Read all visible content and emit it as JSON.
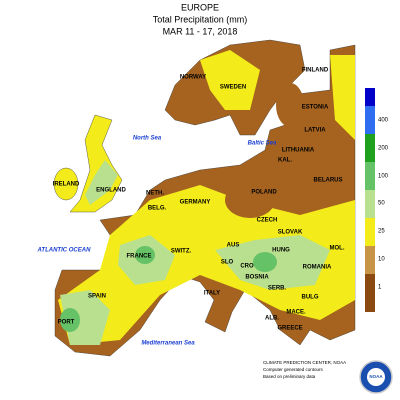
{
  "header": {
    "region": "EUROPE",
    "variable": "Total Precipitation (mm)",
    "period": "MAR 11 - 17, 2018"
  },
  "labels": [
    "NORWAY",
    "SWEDEN",
    "FINLAND",
    "ESTONIA",
    "LATVIA",
    "LITHUANIA",
    "KAL.",
    "BELARUS",
    "IRELAND",
    "ENGLAND",
    "NETH.",
    "BELG.",
    "GERMANY",
    "POLAND",
    "CZECH",
    "SLOVAK",
    "HUNG",
    "AUS",
    "SWITZ.",
    "FRANCE",
    "SLO",
    "CRO",
    "BOSNIA",
    "SERB.",
    "ROMANIA",
    "MOL.",
    "BULG",
    "MACE.",
    "ALB.",
    "GREECE",
    "ITALY",
    "SPAIN",
    "PORT"
  ],
  "seas": [
    "North Sea",
    "Baltic Sea",
    "ATLANTIC OCEAN",
    "Mediterranean Sea"
  ],
  "legend": {
    "labels": [
      "400",
      "200",
      "100",
      "50",
      "25",
      "10",
      "1"
    ]
  },
  "credits": [
    "CLIMATE PREDICTION CENTER, NOAA",
    "Computer generated contours",
    "Based on preliminary data"
  ],
  "logo": "NOAA"
}
